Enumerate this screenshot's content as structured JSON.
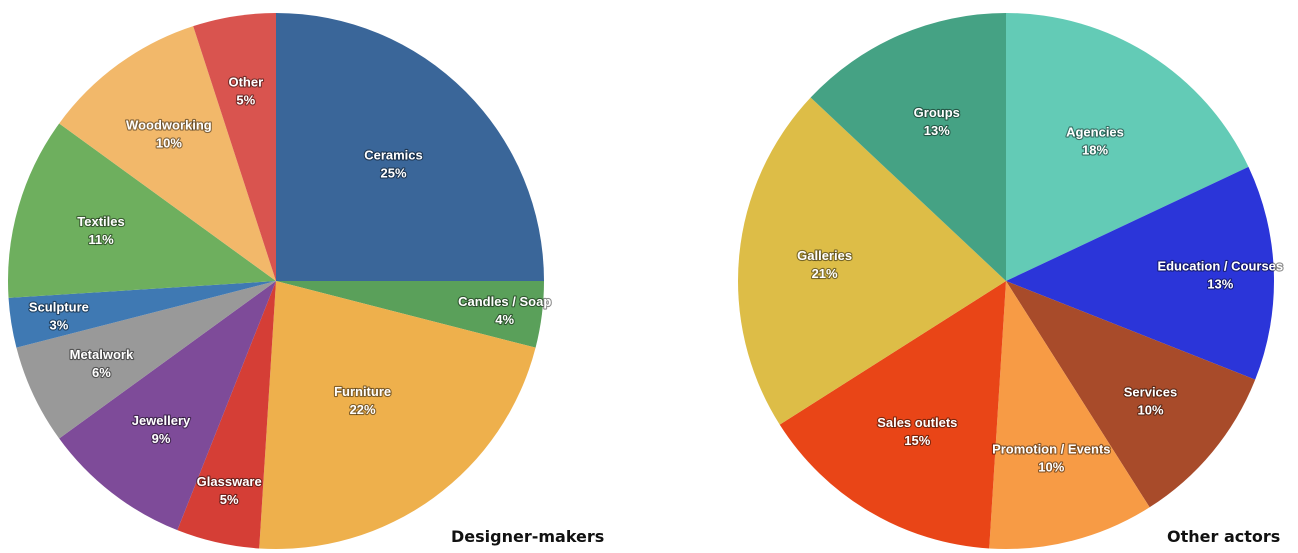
{
  "chart_data": [
    {
      "type": "pie",
      "title": "Designer-makers",
      "categories": [
        "Ceramics",
        "Candles / Soap",
        "Furniture",
        "Glassware",
        "Jewellery",
        "Metalwork",
        "Sculpture",
        "Textiles",
        "Woodworking",
        "Other"
      ],
      "values": [
        25,
        4,
        22,
        5,
        9,
        6,
        3,
        11,
        10,
        5
      ],
      "labels": [
        "25%",
        "4%",
        "22%",
        "5%",
        "9%",
        "6%",
        "3%",
        "11%",
        "10%",
        "5%"
      ],
      "colors": [
        "#3a6699",
        "#5aa05a",
        "#eeb04c",
        "#d53e36",
        "#7e4b99",
        "#999999",
        "#3f79b3",
        "#6eaf5e",
        "#f2b86a",
        "#d9544f"
      ],
      "start": "12 o'clock",
      "direction": "clockwise",
      "legend": "none"
    },
    {
      "type": "pie",
      "title": "Other actors",
      "categories": [
        "Agencies",
        "Education / Courses",
        "Services",
        "Promotion / Events",
        "Sales outlets",
        "Galleries",
        "Groups"
      ],
      "values": [
        18,
        13,
        10,
        10,
        15,
        21,
        13
      ],
      "labels": [
        "18%",
        "13%",
        "10%",
        "10%",
        "15%",
        "21%",
        "13%"
      ],
      "colors": [
        "#63cbb6",
        "#2b35d9",
        "#a84b2a",
        "#f79b45",
        "#e94517",
        "#ddbd47",
        "#45a284"
      ],
      "start": "12 o'clock",
      "direction": "clockwise",
      "legend": "none"
    }
  ]
}
